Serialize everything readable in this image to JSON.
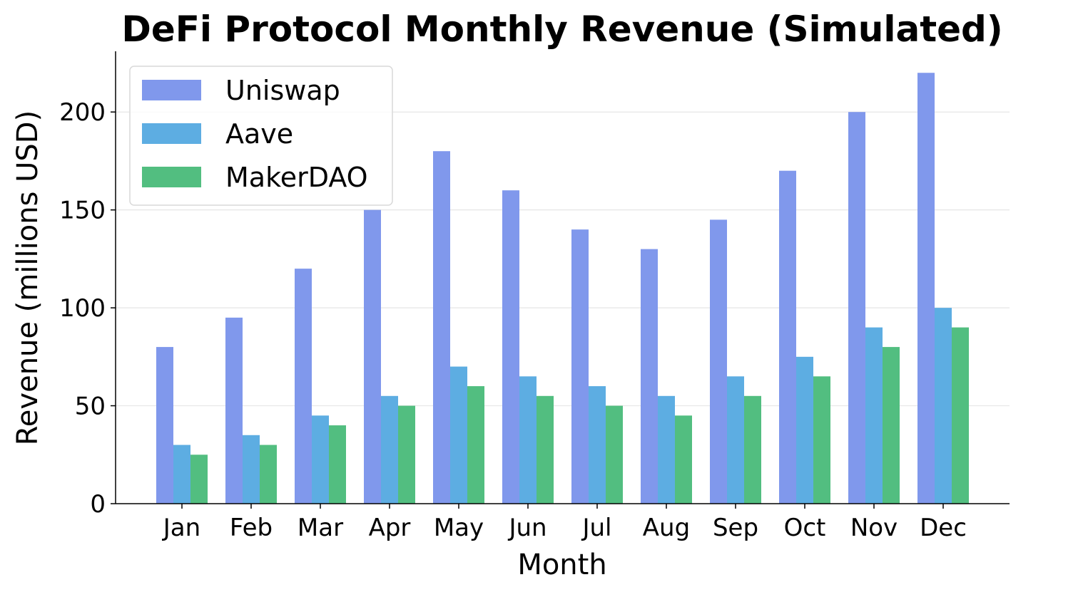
{
  "chart_data": {
    "type": "bar",
    "title": "DeFi Protocol Monthly Revenue (Simulated)",
    "xlabel": "Month",
    "ylabel": "Revenue (millions USD)",
    "ylim": [
      0,
      231
    ],
    "yticks": [
      0,
      50,
      100,
      150,
      200
    ],
    "grid": "horizontal",
    "legend_position": "top-left",
    "categories": [
      "Jan",
      "Feb",
      "Mar",
      "Apr",
      "May",
      "Jun",
      "Jul",
      "Aug",
      "Sep",
      "Oct",
      "Nov",
      "Dec"
    ],
    "series": [
      {
        "name": "Uniswap",
        "color": "#8098ec",
        "values": [
          80,
          95,
          120,
          150,
          180,
          160,
          140,
          130,
          145,
          170,
          200,
          220
        ]
      },
      {
        "name": "Aave",
        "color": "#5dade2",
        "values": [
          30,
          35,
          45,
          55,
          70,
          65,
          60,
          55,
          65,
          75,
          90,
          100
        ]
      },
      {
        "name": "MakerDAO",
        "color": "#52be80",
        "values": [
          25,
          30,
          40,
          50,
          60,
          55,
          50,
          45,
          55,
          65,
          80,
          90
        ]
      }
    ]
  }
}
